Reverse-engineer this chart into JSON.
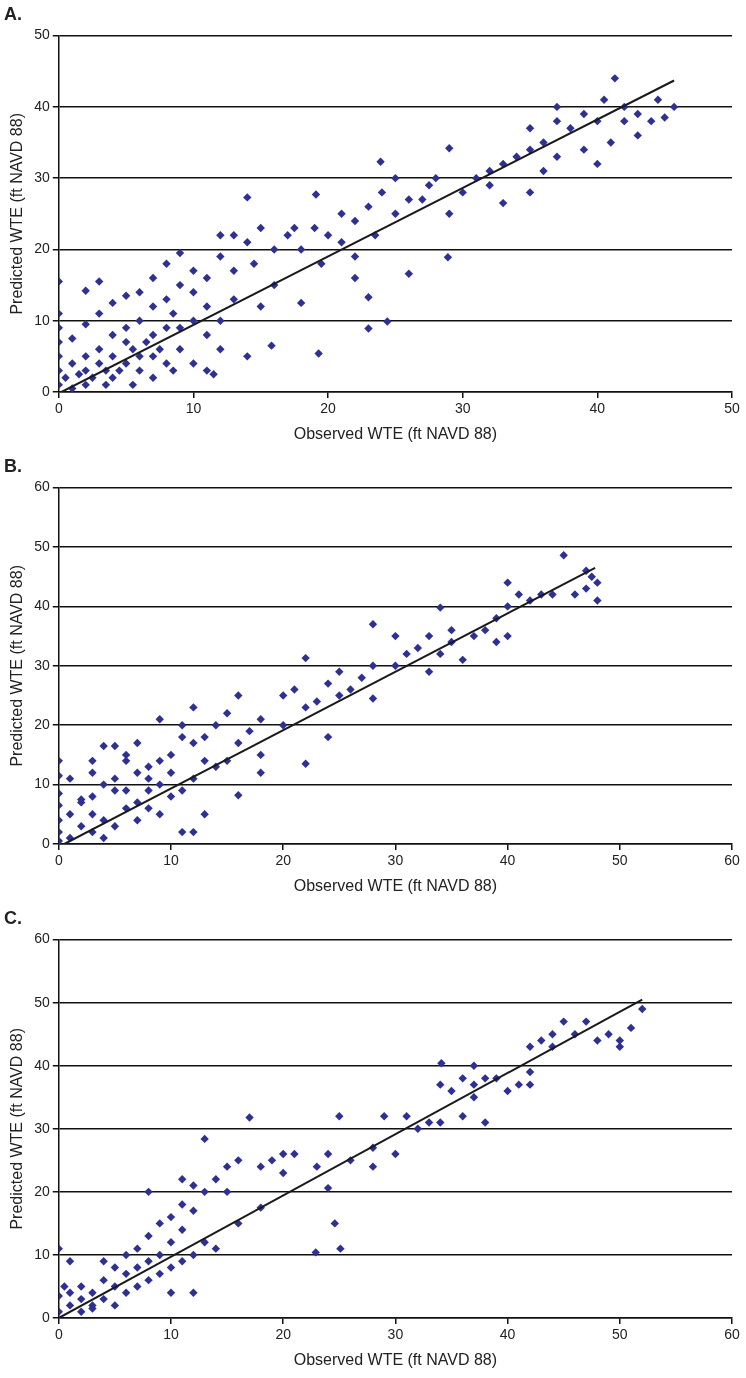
{
  "chart_data": [
    {
      "type": "scatter",
      "title": "A.",
      "xlabel": "Observed WTE (ft NAVD 88)",
      "ylabel": "Predicted WTE (ft NAVD 88)",
      "xlim": [
        0,
        50
      ],
      "xticks": [
        0,
        10,
        20,
        30,
        40,
        50
      ],
      "ylim": [
        0,
        50
      ],
      "yticks": [
        0,
        10,
        20,
        30,
        40,
        50
      ],
      "grid": "y",
      "legend": false,
      "series": [
        {
          "type": "scatter",
          "color": "#2e3192",
          "marker": "diamond",
          "x": [
            0,
            0,
            0,
            0,
            0,
            0,
            0,
            0.5,
            1,
            1,
            1,
            1.5,
            2,
            2,
            2,
            2,
            2,
            2.5,
            3,
            3,
            3,
            3,
            3.5,
            3.5,
            4,
            4,
            4,
            4,
            4.5,
            5,
            5,
            5,
            5,
            5.5,
            5.5,
            6,
            6,
            6,
            6,
            6.5,
            7,
            7,
            7,
            7,
            7,
            7.5,
            8,
            8,
            8,
            8,
            8.5,
            8.5,
            9,
            9,
            9,
            9,
            10,
            10,
            10,
            10,
            11,
            11,
            11,
            11,
            11.5,
            12,
            12,
            12,
            12,
            13,
            13,
            13,
            14,
            14,
            14,
            14.5,
            15,
            15,
            15.8,
            16,
            16,
            17,
            17.5,
            18,
            18,
            19,
            19.1,
            19.3,
            19.5,
            20,
            21,
            21,
            22,
            22,
            22,
            23,
            23,
            23,
            23.5,
            23.9,
            24,
            24.4,
            25,
            25,
            26,
            26,
            27,
            27.5,
            28,
            28.9,
            29,
            29,
            30,
            31,
            32,
            32,
            33,
            33,
            34,
            35,
            35,
            35,
            36,
            36,
            37,
            37,
            37,
            38,
            39,
            39,
            40,
            40,
            40.5,
            41,
            41.3,
            42,
            42,
            43,
            43,
            44,
            44.5,
            45,
            45.7
          ],
          "values": [
            1,
            3,
            5,
            7,
            9,
            11,
            15.5,
            2,
            0.5,
            4,
            7.5,
            2.5,
            1,
            3,
            5,
            9.5,
            14.2,
            2,
            4,
            6,
            11,
            15.5,
            1,
            3,
            2,
            5,
            8,
            12.5,
            3,
            4,
            7,
            9,
            13.5,
            1,
            6,
            3,
            5,
            10,
            14,
            7,
            2,
            5,
            8,
            12,
            16,
            6,
            4,
            9,
            13,
            18,
            3,
            11,
            6,
            9,
            15,
            19.5,
            4,
            10,
            14,
            17,
            3,
            8,
            12,
            16,
            2.5,
            6,
            10,
            19,
            22,
            13,
            17,
            22,
            27.3,
            5,
            21,
            18,
            12,
            23,
            6.5,
            20,
            15,
            22,
            23,
            20,
            12.5,
            23,
            27.7,
            5.4,
            18,
            22,
            21,
            25,
            16,
            24,
            19,
            8.9,
            13.3,
            26,
            22,
            32.3,
            28,
            9.9,
            25,
            30,
            16.6,
            27,
            27,
            29,
            30,
            18.9,
            34.2,
            25,
            28,
            30,
            29,
            31,
            26.5,
            32,
            33,
            37,
            34,
            28,
            35,
            31,
            38,
            40,
            33,
            37,
            34,
            39,
            32,
            38,
            41,
            35,
            44,
            38,
            40,
            36,
            39,
            38,
            41,
            38.5,
            40
          ]
        },
        {
          "type": "line",
          "color": "#1a1a1a",
          "marker": "none",
          "x": [
            0.2,
            45.7
          ],
          "values": [
            0,
            43.7
          ]
        }
      ]
    },
    {
      "type": "scatter",
      "title": "B.",
      "xlabel": "Observed WTE (ft NAVD 88)",
      "ylabel": "Predicted WTE (ft NAVD 88)",
      "xlim": [
        0,
        60
      ],
      "xticks": [
        0,
        10,
        20,
        30,
        40,
        50,
        60
      ],
      "ylim": [
        0,
        60
      ],
      "yticks": [
        0,
        10,
        20,
        30,
        40,
        50,
        60
      ],
      "grid": "y",
      "legend": false,
      "series": [
        {
          "type": "scatter",
          "color": "#2e3192",
          "marker": "diamond",
          "x": [
            0,
            0,
            0,
            0,
            0,
            0,
            0,
            1,
            1,
            1,
            2,
            2,
            2,
            3,
            3,
            3,
            3,
            3,
            4,
            4,
            4,
            4,
            5,
            5,
            5,
            5,
            6,
            6,
            6,
            6,
            7,
            7,
            7,
            7,
            8,
            8,
            8,
            8,
            9,
            9,
            9,
            9,
            10,
            10,
            10,
            11,
            11,
            11,
            11,
            12,
            12,
            12,
            12,
            13,
            13,
            13,
            14,
            14,
            15,
            15,
            16,
            16,
            16,
            17,
            18,
            18,
            18,
            20,
            20,
            21,
            22,
            22,
            22,
            23,
            24,
            24,
            25,
            25,
            26,
            27,
            28,
            28,
            28,
            30,
            30,
            31,
            32,
            33,
            33,
            34,
            34,
            35,
            35,
            36,
            37,
            38,
            39,
            39,
            40,
            40,
            40,
            41,
            42,
            43,
            44,
            45,
            46,
            47,
            47,
            48,
            48,
            47.5
          ],
          "values": [
            0.5,
            2,
            4,
            6.5,
            8.5,
            14,
            11.5,
            1,
            5,
            11,
            3,
            7,
            7.5,
            2,
            5,
            8,
            14,
            12,
            1,
            4,
            10,
            16.5,
            3,
            9,
            11,
            16.5,
            6,
            9,
            14,
            15,
            4,
            7,
            12,
            17,
            6,
            9,
            13,
            11,
            5,
            10,
            14,
            21,
            8,
            12,
            15,
            2,
            9,
            20,
            18,
            2,
            11,
            17,
            23,
            5,
            14,
            18,
            13,
            20,
            22,
            14,
            17,
            25,
            8.2,
            19,
            12,
            15,
            21,
            20,
            25,
            26,
            13.5,
            31.3,
            23,
            24,
            27,
            18,
            25,
            29,
            26,
            28,
            37,
            30,
            24.5,
            30,
            35,
            32,
            33,
            29,
            35,
            32,
            39.8,
            34,
            36,
            31,
            35,
            36,
            38,
            34,
            35,
            40,
            44,
            42,
            41,
            42,
            42,
            48.6,
            42,
            43,
            46,
            41,
            44,
            45
          ]
        },
        {
          "type": "line",
          "color": "#1a1a1a",
          "marker": "none",
          "x": [
            0.5,
            47.8
          ],
          "values": [
            0,
            46.5
          ]
        }
      ]
    },
    {
      "type": "scatter",
      "title": "C.",
      "xlabel": "Observed WTE (ft NAVD 88)",
      "ylabel": "Predicted WTE (ft NAVD 88)",
      "xlim": [
        0,
        60
      ],
      "xticks": [
        0,
        10,
        20,
        30,
        40,
        50,
        60
      ],
      "ylim": [
        0,
        60
      ],
      "yticks": [
        0,
        10,
        20,
        30,
        40,
        50,
        60
      ],
      "grid": "y",
      "legend": false,
      "series": [
        {
          "type": "scatter",
          "color": "#2e3192",
          "marker": "diamond",
          "x": [
            0,
            0,
            0,
            0.5,
            1,
            1,
            1,
            2,
            2,
            2,
            3,
            3,
            3,
            4,
            4,
            4,
            5,
            5,
            5,
            6,
            6,
            6,
            7,
            7,
            7,
            8,
            8,
            8,
            8,
            9,
            9,
            9,
            10,
            10,
            10,
            10,
            11,
            11,
            11,
            11,
            12,
            12,
            12,
            12,
            13,
            13,
            13,
            14,
            14,
            15,
            15,
            16,
            16,
            17,
            18,
            18,
            19,
            20,
            20,
            21,
            22.9,
            23,
            24,
            24,
            24.6,
            25,
            25.1,
            26,
            28,
            28,
            29,
            30,
            31,
            32,
            33,
            34,
            34.1,
            34,
            35,
            36,
            36,
            37,
            37,
            37,
            38,
            38,
            39,
            40,
            41,
            42,
            42,
            42,
            43,
            44,
            44,
            45,
            46,
            47,
            48,
            49,
            50,
            50,
            51,
            52
          ],
          "values": [
            1,
            3.5,
            11,
            5,
            2,
            9,
            4,
            1,
            5,
            3,
            1.5,
            4,
            2,
            3,
            6,
            9,
            2,
            5,
            8,
            4,
            7,
            10,
            5,
            8,
            11,
            6,
            9,
            20,
            13,
            7,
            10,
            15,
            4,
            8,
            12,
            16,
            9,
            14,
            18,
            22,
            10,
            4,
            17,
            21,
            12,
            28.4,
            20,
            11,
            22,
            20,
            24,
            15,
            25,
            31.8,
            17.5,
            24,
            25,
            23,
            26,
            26,
            10.4,
            24,
            20.6,
            26,
            15,
            32,
            11,
            25,
            27,
            24,
            32,
            26,
            32,
            30,
            31,
            31,
            40.4,
            37,
            36,
            38,
            32,
            37,
            40,
            35,
            31,
            38,
            38,
            36,
            37,
            37,
            39,
            43,
            44,
            45,
            43,
            47,
            45,
            47,
            44,
            45,
            44,
            43,
            46,
            49
          ]
        },
        {
          "type": "line",
          "color": "#1a1a1a",
          "marker": "none",
          "x": [
            0,
            52
          ],
          "values": [
            0,
            50.5
          ]
        }
      ]
    }
  ]
}
